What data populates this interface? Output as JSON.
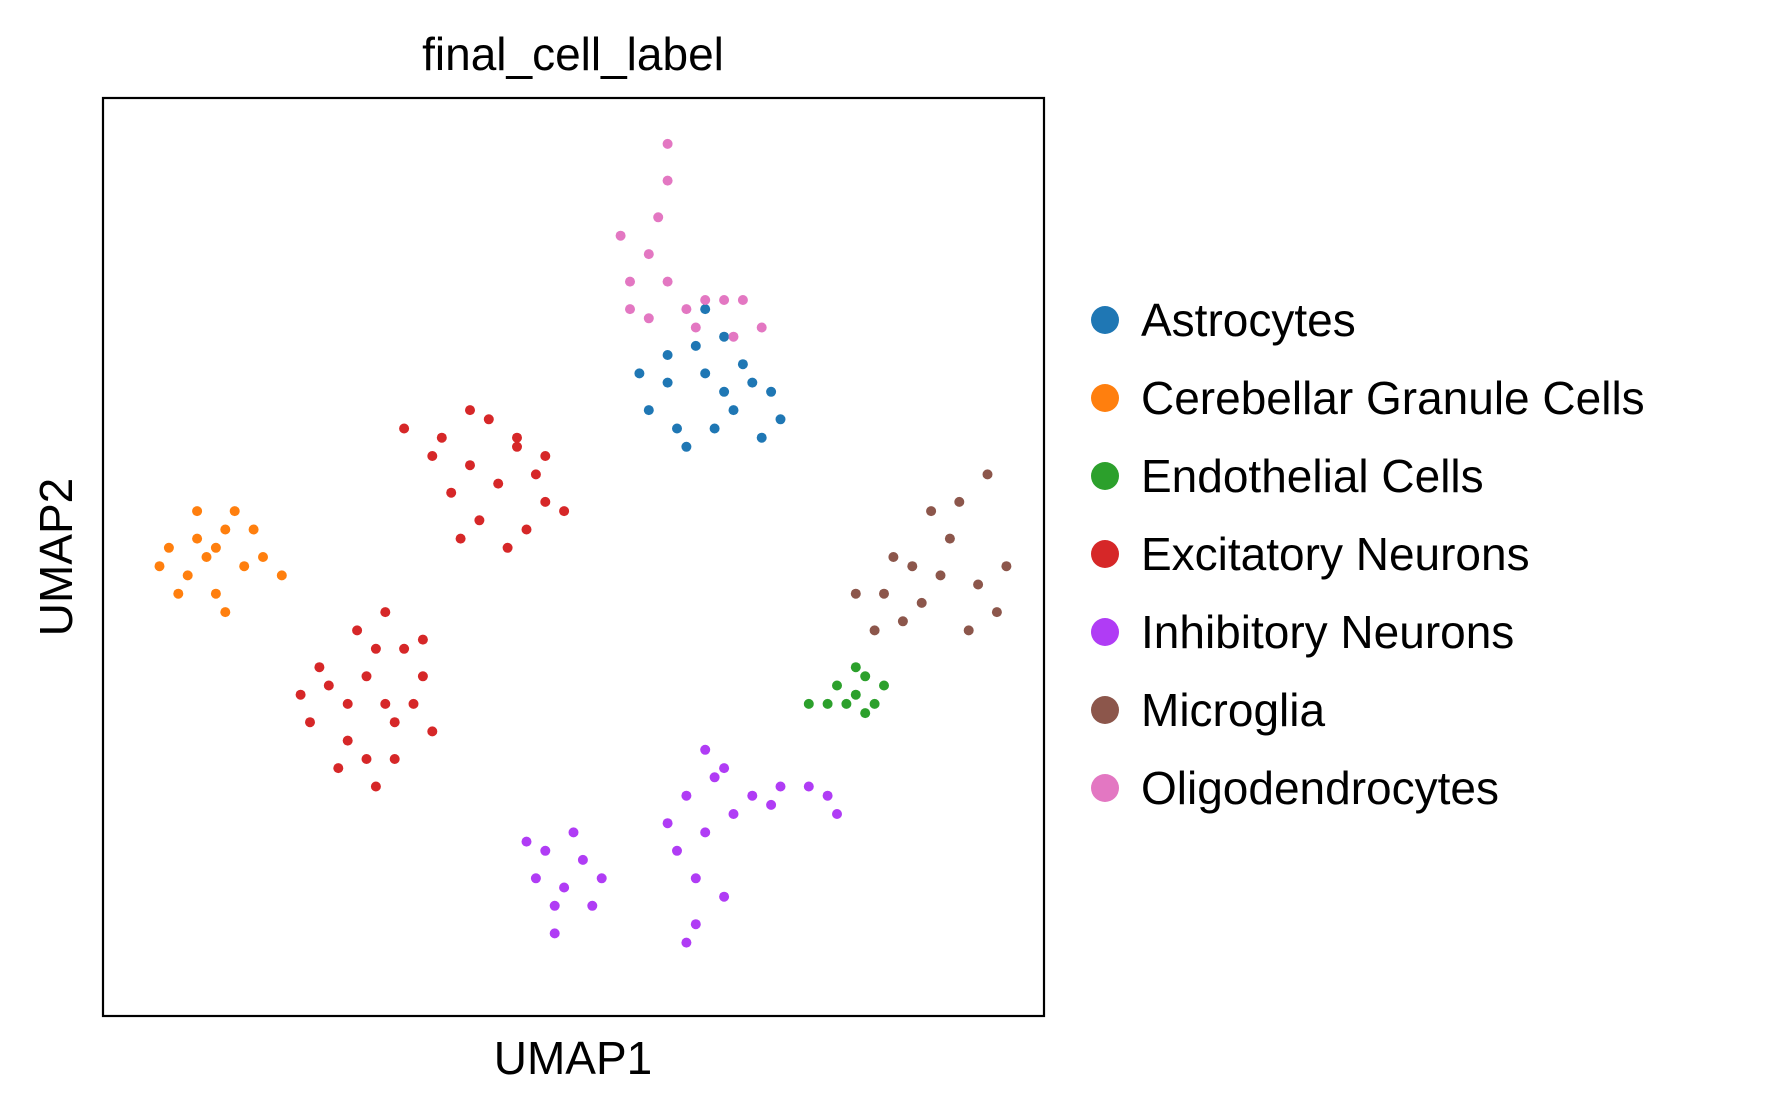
{
  "chart_data": {
    "type": "scatter",
    "title": "final_cell_label",
    "xlabel": "UMAP1",
    "ylabel": "UMAP2",
    "xlim": [
      0,
      100
    ],
    "ylim": [
      0,
      100
    ],
    "ticks": "none",
    "grid": false,
    "legend_position": "right",
    "series": [
      {
        "name": "Astrocytes",
        "color": "#1f77b4",
        "points": [
          [
            66,
            68
          ],
          [
            68,
            71
          ],
          [
            65,
            64
          ],
          [
            62,
            62
          ],
          [
            58,
            66
          ],
          [
            60,
            69
          ],
          [
            63,
            73
          ],
          [
            67,
            66
          ],
          [
            70,
            63
          ],
          [
            72,
            65
          ],
          [
            69,
            69
          ],
          [
            64,
            70
          ],
          [
            61,
            64
          ],
          [
            66,
            74
          ],
          [
            64,
            77
          ],
          [
            60,
            72
          ],
          [
            57,
            70
          ],
          [
            71,
            68
          ]
        ]
      },
      {
        "name": "Cerebellar Granule Cells",
        "color": "#ff7f0e",
        "points": [
          [
            11,
            50
          ],
          [
            13,
            53
          ],
          [
            9,
            48
          ],
          [
            7,
            51
          ],
          [
            12,
            46
          ],
          [
            15,
            49
          ],
          [
            17,
            50
          ],
          [
            14,
            55
          ],
          [
            10,
            55
          ],
          [
            8,
            46
          ],
          [
            6,
            49
          ],
          [
            19,
            48
          ],
          [
            12,
            51
          ],
          [
            16,
            53
          ],
          [
            10,
            52
          ],
          [
            13,
            44
          ]
        ]
      },
      {
        "name": "Endothelial Cells",
        "color": "#2ca02c",
        "points": [
          [
            80,
            35
          ],
          [
            81,
            37
          ],
          [
            79,
            34
          ],
          [
            78,
            36
          ],
          [
            82,
            34
          ],
          [
            81,
            33
          ],
          [
            77,
            34
          ],
          [
            75,
            34
          ],
          [
            83,
            36
          ],
          [
            80,
            38
          ]
        ]
      },
      {
        "name": "Excitatory Neurons",
        "color": "#d62728",
        "points": [
          [
            42,
            58
          ],
          [
            39,
            60
          ],
          [
            36,
            63
          ],
          [
            44,
            62
          ],
          [
            47,
            56
          ],
          [
            45,
            53
          ],
          [
            40,
            54
          ],
          [
            37,
            57
          ],
          [
            41,
            65
          ],
          [
            46,
            59
          ],
          [
            49,
            55
          ],
          [
            35,
            61
          ],
          [
            43,
            51
          ],
          [
            38,
            52
          ],
          [
            44,
            63
          ],
          [
            32,
            64
          ],
          [
            47,
            61
          ],
          [
            39,
            66
          ],
          [
            30,
            34
          ],
          [
            28,
            37
          ],
          [
            31,
            32
          ],
          [
            26,
            34
          ],
          [
            24,
            36
          ],
          [
            28,
            28
          ],
          [
            32,
            40
          ],
          [
            34,
            37
          ],
          [
            27,
            42
          ],
          [
            29,
            25
          ],
          [
            22,
            32
          ],
          [
            23,
            38
          ],
          [
            31,
            28
          ],
          [
            33,
            34
          ],
          [
            26,
            30
          ],
          [
            30,
            44
          ],
          [
            35,
            31
          ],
          [
            25,
            27
          ],
          [
            29,
            40
          ],
          [
            21,
            35
          ],
          [
            34,
            41
          ]
        ]
      },
      {
        "name": "Inhibitory Neurons",
        "color": "#b03cf5",
        "points": [
          [
            49,
            14
          ],
          [
            51,
            17
          ],
          [
            47,
            18
          ],
          [
            48,
            12
          ],
          [
            46,
            15
          ],
          [
            52,
            12
          ],
          [
            50,
            20
          ],
          [
            45,
            19
          ],
          [
            53,
            15
          ],
          [
            48,
            9
          ],
          [
            63,
            15
          ],
          [
            64,
            20
          ],
          [
            62,
            24
          ],
          [
            65,
            26
          ],
          [
            61,
            18
          ],
          [
            63,
            10
          ],
          [
            66,
            13
          ],
          [
            64,
            29
          ],
          [
            67,
            22
          ],
          [
            62,
            8
          ],
          [
            69,
            24
          ],
          [
            72,
            25
          ],
          [
            75,
            25
          ],
          [
            77,
            24
          ],
          [
            78,
            22
          ],
          [
            66,
            27
          ],
          [
            71,
            23
          ],
          [
            60,
            21
          ]
        ]
      },
      {
        "name": "Microglia",
        "color": "#8c564b",
        "points": [
          [
            87,
            45
          ],
          [
            89,
            48
          ],
          [
            85,
            43
          ],
          [
            83,
            46
          ],
          [
            90,
            52
          ],
          [
            93,
            47
          ],
          [
            95,
            44
          ],
          [
            92,
            42
          ],
          [
            88,
            55
          ],
          [
            91,
            56
          ],
          [
            94,
            59
          ],
          [
            80,
            46
          ],
          [
            82,
            42
          ],
          [
            86,
            49
          ],
          [
            84,
            50
          ],
          [
            96,
            49
          ]
        ]
      },
      {
        "name": "Oligodendrocytes",
        "color": "#e377c2",
        "points": [
          [
            60,
            95
          ],
          [
            60,
            91
          ],
          [
            59,
            87
          ],
          [
            58,
            83
          ],
          [
            56,
            80
          ],
          [
            55,
            85
          ],
          [
            56,
            77
          ],
          [
            58,
            76
          ],
          [
            60,
            80
          ],
          [
            62,
            77
          ],
          [
            63,
            75
          ],
          [
            64,
            78
          ],
          [
            66,
            78
          ],
          [
            68,
            78
          ],
          [
            67,
            74
          ],
          [
            70,
            75
          ]
        ]
      }
    ]
  }
}
